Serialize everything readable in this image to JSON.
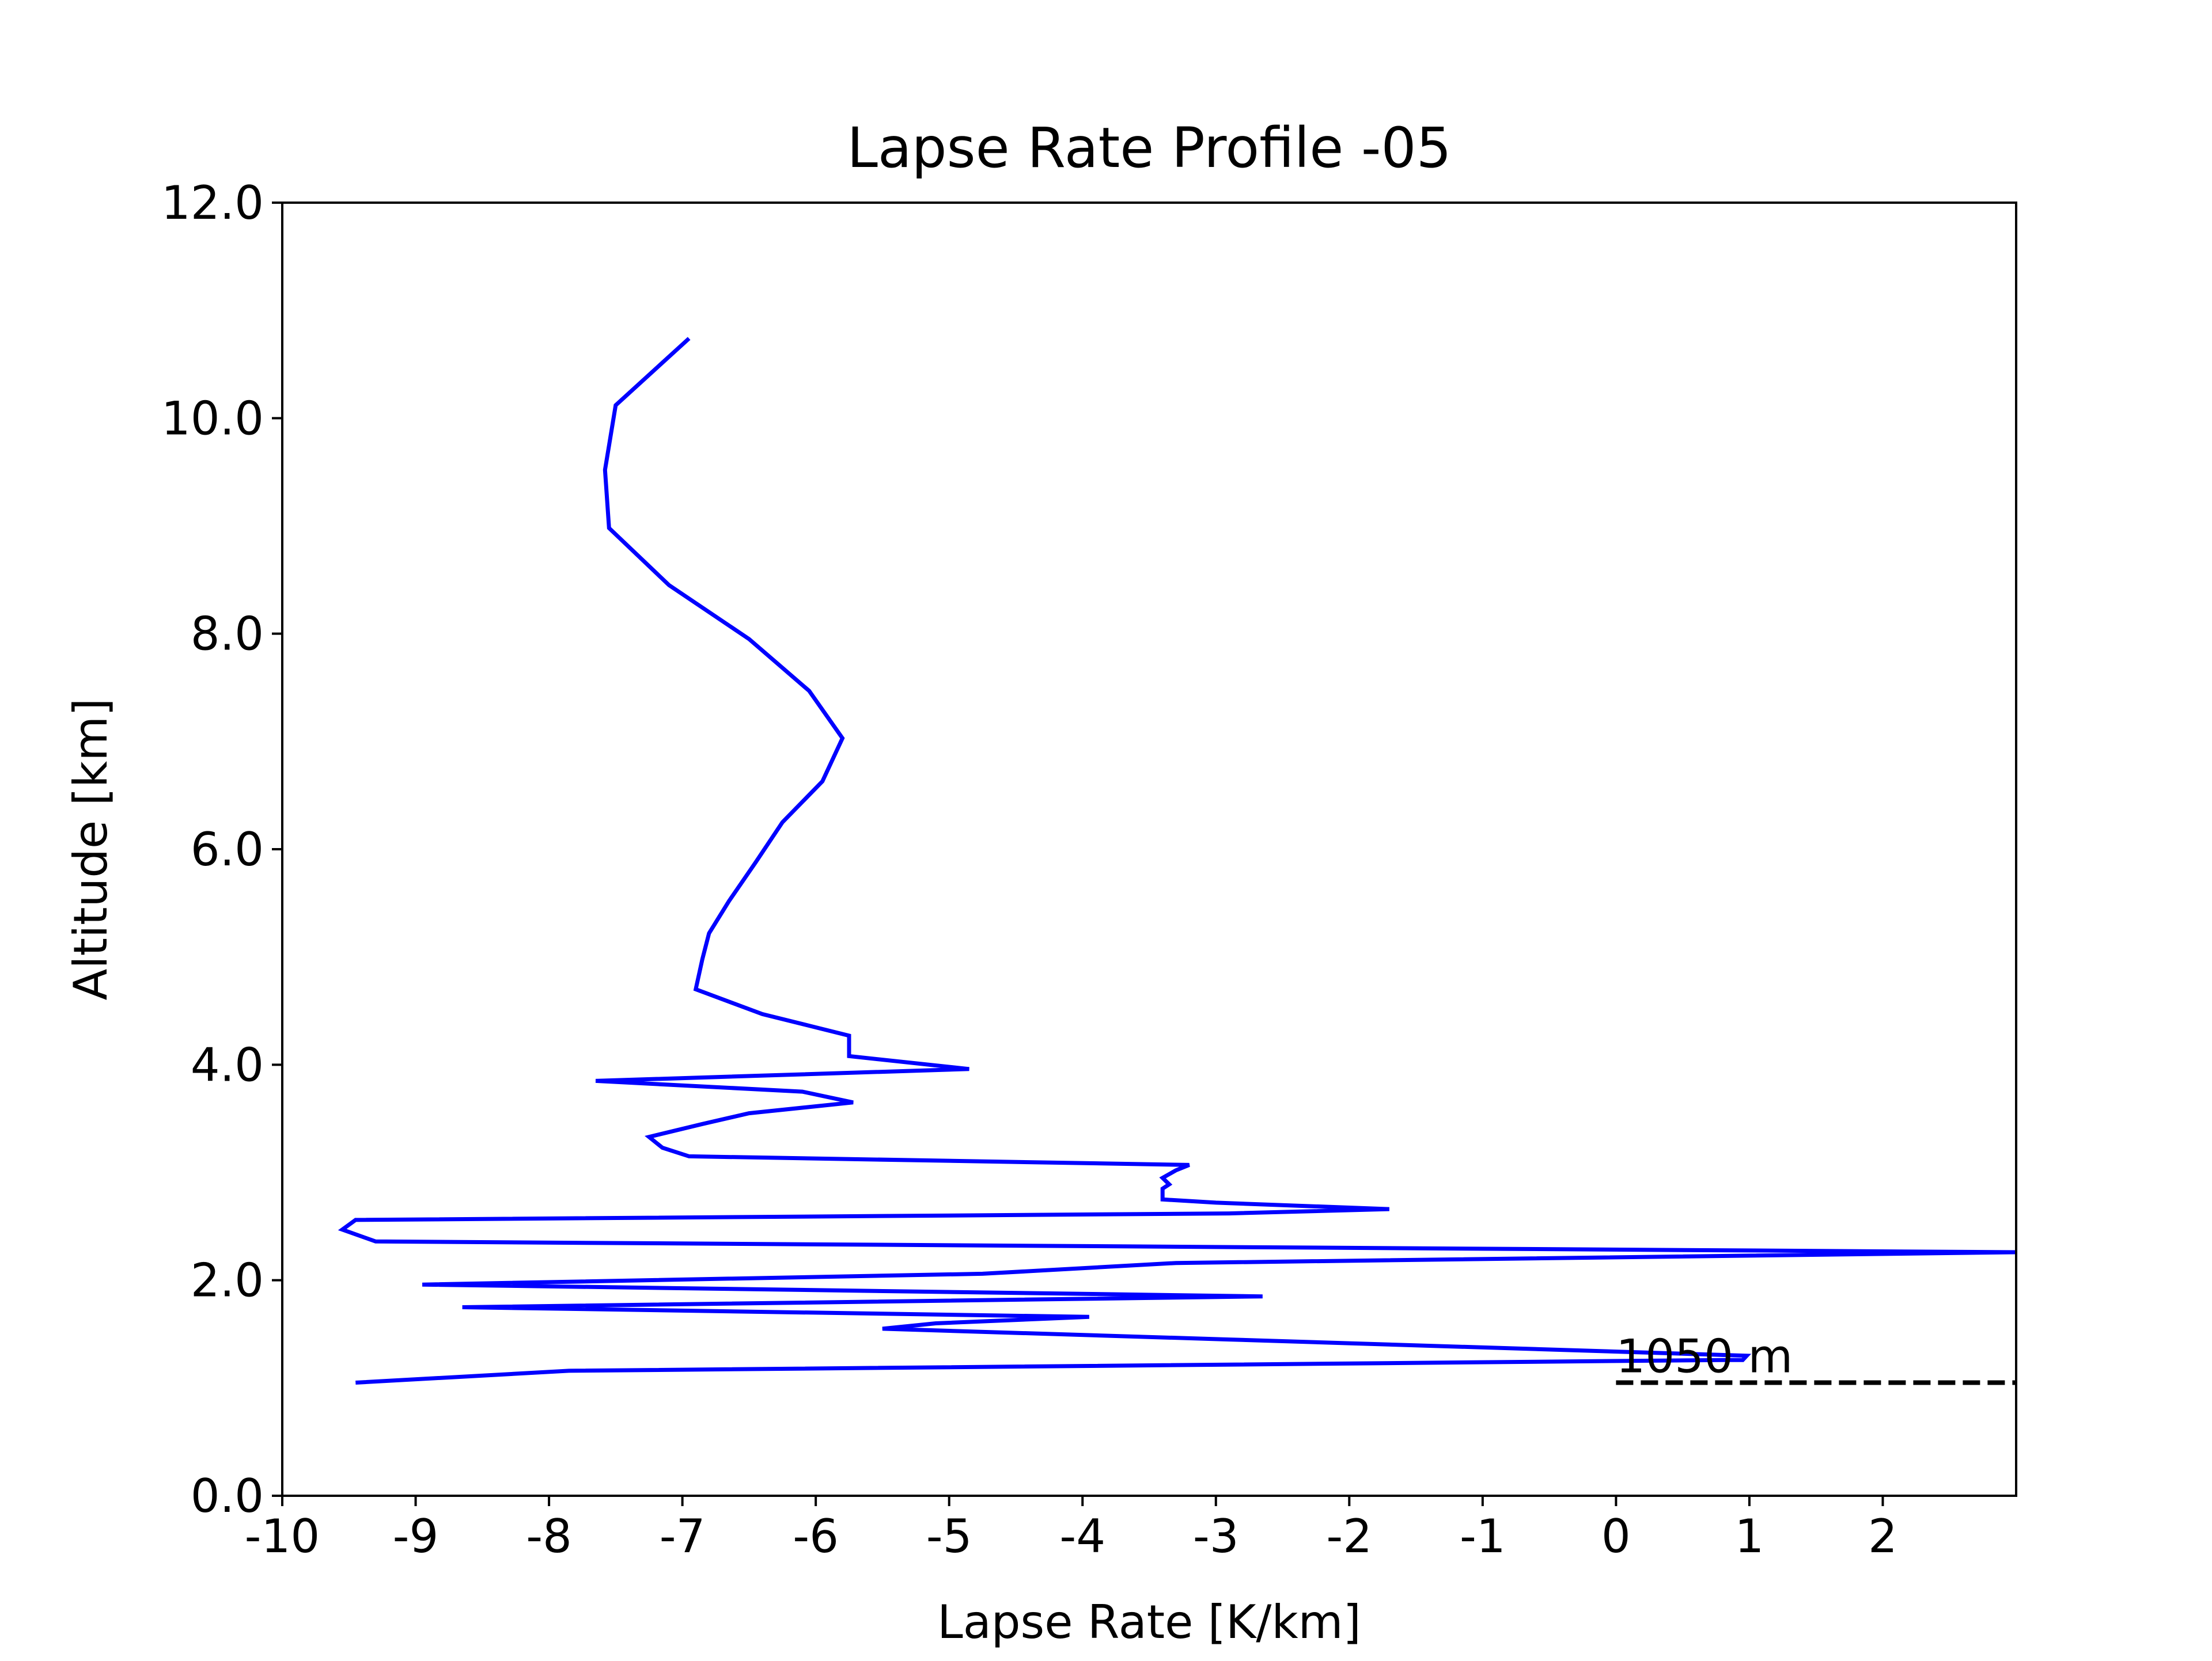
{
  "chart_data": {
    "type": "line",
    "title": "Lapse Rate Profile -05",
    "xlabel": "Lapse Rate [K/km]",
    "ylabel": "Altitude [km]",
    "xlim": [
      -10,
      3
    ],
    "ylim": [
      0,
      12
    ],
    "x_ticks": [
      -10,
      -9,
      -8,
      -7,
      -6,
      -5,
      -4,
      -3,
      -2,
      -1,
      0,
      1,
      2
    ],
    "x_tick_labels": [
      "-10",
      "-9",
      "-8",
      "-7",
      "-6",
      "-5",
      "-4",
      "-3",
      "-2",
      "-1",
      "0",
      "1",
      "2"
    ],
    "y_ticks": [
      0,
      2,
      4,
      6,
      8,
      10,
      12
    ],
    "y_tick_labels": [
      "0.0",
      "2.0",
      "4.0",
      "6.0",
      "8.0",
      "10.0",
      "12.0"
    ],
    "grid": false,
    "legend": "none",
    "series": [
      {
        "color": "#0000ff",
        "points": [
          [
            -9.45,
            1.05
          ],
          [
            -7.85,
            1.16
          ],
          [
            0.8,
            1.26
          ],
          [
            0.95,
            1.26
          ],
          [
            0.98,
            1.3
          ],
          [
            -2.9,
            1.45
          ],
          [
            -5.5,
            1.55
          ],
          [
            -5.1,
            1.6
          ],
          [
            -3.95,
            1.66
          ],
          [
            -8.65,
            1.75
          ],
          [
            -2.65,
            1.85
          ],
          [
            -8.95,
            1.96
          ],
          [
            -4.75,
            2.06
          ],
          [
            -3.3,
            2.16
          ],
          [
            3.0,
            2.26
          ],
          [
            -9.3,
            2.36
          ],
          [
            -9.55,
            2.47
          ],
          [
            -9.45,
            2.56
          ],
          [
            -2.9,
            2.62
          ],
          [
            -1.7,
            2.66
          ],
          [
            -3.0,
            2.72
          ],
          [
            -3.4,
            2.75
          ],
          [
            -3.4,
            2.85
          ],
          [
            -3.35,
            2.89
          ],
          [
            -3.4,
            2.95
          ],
          [
            -3.3,
            3.02
          ],
          [
            -3.2,
            3.07
          ],
          [
            -6.95,
            3.15
          ],
          [
            -7.15,
            3.23
          ],
          [
            -7.25,
            3.33
          ],
          [
            -6.85,
            3.45
          ],
          [
            -6.5,
            3.55
          ],
          [
            -5.72,
            3.65
          ],
          [
            -6.1,
            3.75
          ],
          [
            -7.65,
            3.85
          ],
          [
            -4.85,
            3.96
          ],
          [
            -5.75,
            4.08
          ],
          [
            -5.75,
            4.27
          ],
          [
            -6.4,
            4.47
          ],
          [
            -6.9,
            4.7
          ],
          [
            -6.85,
            4.98
          ],
          [
            -6.8,
            5.22
          ],
          [
            -6.65,
            5.52
          ],
          [
            -6.45,
            5.88
          ],
          [
            -6.25,
            6.25
          ],
          [
            -5.95,
            6.63
          ],
          [
            -5.8,
            7.03
          ],
          [
            -6.05,
            7.47
          ],
          [
            -6.5,
            7.95
          ],
          [
            -7.1,
            8.45
          ],
          [
            -7.55,
            8.98
          ],
          [
            -7.58,
            9.52
          ],
          [
            -7.5,
            10.12
          ],
          [
            -6.95,
            10.74
          ]
        ]
      }
    ],
    "annotations": [
      {
        "text": "1050 m",
        "x": 0,
        "y": 1.05,
        "style": "dashed-line-label",
        "line_x_range": [
          0,
          3
        ],
        "line_color": "#000000"
      }
    ]
  }
}
